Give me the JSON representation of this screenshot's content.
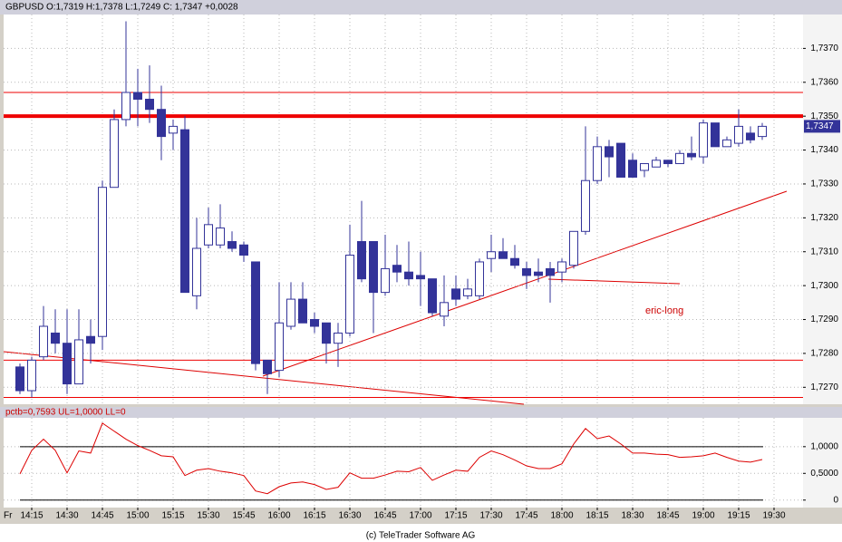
{
  "chart_data": [
    {
      "type": "candlestick",
      "title": "GBPUSD O:1,7319 H:1,7378 L:1,7249 C: 1,7347 +0,0028",
      "x_day_label": "Fr",
      "categories": [
        null,
        "14:15",
        null,
        null,
        "14:30",
        null,
        null,
        "14:45",
        null,
        null,
        "15:00",
        null,
        null,
        "15:15",
        null,
        null,
        "15:30",
        null,
        null,
        "15:45",
        null,
        null,
        "16:00",
        null,
        null,
        "16:15",
        null,
        null,
        "16:30",
        null,
        null,
        "16:45",
        null,
        null,
        "17:00",
        null,
        null,
        "17:15",
        null,
        null,
        "17:30",
        null,
        null,
        "17:45",
        null,
        null,
        "18:00",
        null,
        null,
        "18:15",
        null,
        null,
        "18:30",
        null,
        null,
        "18:45",
        null,
        null,
        "19:00",
        null,
        null,
        "19:15",
        null,
        null,
        "19:30"
      ],
      "open": [
        1.7276,
        1.7269,
        1.7279,
        1.7286,
        1.7283,
        1.7271,
        1.7285,
        1.7285,
        1.7329,
        1.7349,
        1.7357,
        1.7355,
        1.7352,
        1.7345,
        1.7346,
        1.7297,
        1.7312,
        1.7312,
        1.7313,
        1.7312,
        1.7307,
        1.7278,
        1.7275,
        1.7288,
        1.7296,
        1.729,
        1.7289,
        1.7283,
        1.7286,
        1.7313,
        1.7313,
        1.7298,
        1.7306,
        1.7304,
        1.7303,
        1.7302,
        1.7291,
        1.7299,
        1.7297,
        1.7297,
        1.7308,
        1.731,
        1.7308,
        1.7305,
        1.7304,
        1.7305,
        1.7304,
        1.7306,
        1.7316,
        1.7331,
        1.7341,
        1.7342,
        1.7337,
        1.7334,
        1.7335,
        1.7337,
        1.7336,
        1.7339,
        1.7338,
        1.7348,
        1.7341,
        1.7342,
        1.7345,
        1.7344,
        null
      ],
      "high": [
        1.7277,
        1.7279,
        1.7294,
        1.7293,
        1.7293,
        1.7293,
        1.729,
        1.7331,
        1.7352,
        1.7378,
        1.7364,
        1.7365,
        1.7359,
        1.7349,
        1.735,
        1.732,
        1.7323,
        1.7324,
        1.7316,
        1.7313,
        1.7307,
        1.7278,
        1.7301,
        1.7301,
        1.7301,
        1.7292,
        1.7289,
        1.7289,
        1.7318,
        1.7325,
        1.7313,
        1.7315,
        1.7312,
        1.7313,
        1.731,
        1.7302,
        1.7303,
        1.7303,
        1.7302,
        1.7308,
        1.7315,
        1.7314,
        1.7312,
        1.7307,
        1.7308,
        1.7307,
        1.7308,
        1.7316,
        1.7347,
        1.7344,
        1.7343,
        1.7342,
        1.7339,
        1.7336,
        1.7338,
        1.7337,
        1.734,
        1.7344,
        1.7349,
        1.7348,
        1.7344,
        1.7352,
        1.7347,
        1.7348,
        null
      ],
      "low": [
        1.7268,
        1.7267,
        1.7278,
        1.728,
        1.7268,
        1.7271,
        1.7277,
        1.7281,
        1.7329,
        1.7347,
        1.7347,
        1.7348,
        1.7337,
        1.734,
        1.7298,
        1.7293,
        1.7311,
        1.7311,
        1.731,
        1.7307,
        1.7275,
        1.7268,
        1.7273,
        1.7287,
        1.7289,
        1.7286,
        1.7277,
        1.7276,
        1.7285,
        1.7301,
        1.7286,
        1.7297,
        1.7301,
        1.73,
        1.7294,
        1.7291,
        1.7288,
        1.7294,
        1.7296,
        1.7296,
        1.7304,
        1.7308,
        1.7305,
        1.7299,
        1.7301,
        1.7295,
        1.7301,
        1.7305,
        1.7315,
        1.733,
        1.7332,
        1.7332,
        1.7332,
        1.7332,
        1.7335,
        1.7335,
        1.7336,
        1.7337,
        1.7336,
        1.7341,
        1.7341,
        1.7341,
        1.7342,
        1.7343,
        null
      ],
      "close": [
        1.7269,
        1.7278,
        1.7288,
        1.7283,
        1.7271,
        1.7284,
        1.7283,
        1.7329,
        1.7349,
        1.7357,
        1.7355,
        1.7352,
        1.7344,
        1.7347,
        1.7298,
        1.7311,
        1.7318,
        1.7317,
        1.7311,
        1.7309,
        1.7277,
        1.7274,
        1.7289,
        1.7296,
        1.7289,
        1.7288,
        1.7283,
        1.7286,
        1.7309,
        1.7302,
        1.7298,
        1.7305,
        1.7304,
        1.7302,
        1.7302,
        1.7292,
        1.7295,
        1.7296,
        1.7299,
        1.7307,
        1.731,
        1.7308,
        1.7306,
        1.7303,
        1.7303,
        1.7303,
        1.7307,
        1.7316,
        1.7331,
        1.7341,
        1.7338,
        1.7332,
        1.7332,
        1.7336,
        1.7337,
        1.7336,
        1.7339,
        1.7338,
        1.7348,
        1.7341,
        1.7343,
        1.7347,
        1.7343,
        1.7347,
        null
      ],
      "close_label": "1,7347",
      "color": "#333399",
      "ylim": [
        1.7265,
        1.738
      ],
      "yticks": [
        {
          "value": 1.727,
          "label": "1,7270"
        },
        {
          "value": 1.728,
          "label": "1,7280"
        },
        {
          "value": 1.729,
          "label": "1,7290"
        },
        {
          "value": 1.73,
          "label": "1,7300"
        },
        {
          "value": 1.731,
          "label": "1,7310"
        },
        {
          "value": 1.732,
          "label": "1,7320"
        },
        {
          "value": 1.733,
          "label": "1,7330"
        },
        {
          "value": 1.734,
          "label": "1,7340"
        },
        {
          "value": 1.735,
          "label": "1,7350"
        },
        {
          "value": 1.736,
          "label": "1,7360"
        },
        {
          "value": 1.737,
          "label": "1,7370"
        }
      ],
      "levels": [
        1.7357,
        1.735,
        1.7278,
        1.7267
      ],
      "level_color": "#ee0000",
      "annotation": "eric-long",
      "grid": true
    },
    {
      "type": "line",
      "title": "pctb=0,7593 UL=1,0000 LL=0",
      "values": [
        0.49,
        0.93,
        1.14,
        0.93,
        0.51,
        0.92,
        0.88,
        1.44,
        1.29,
        1.14,
        1.02,
        0.93,
        0.83,
        0.81,
        0.46,
        0.56,
        0.59,
        0.54,
        0.51,
        0.46,
        0.17,
        0.12,
        0.25,
        0.32,
        0.34,
        0.29,
        0.2,
        0.24,
        0.51,
        0.41,
        0.41,
        0.47,
        0.54,
        0.53,
        0.61,
        0.37,
        0.47,
        0.56,
        0.54,
        0.8,
        0.92,
        0.85,
        0.75,
        0.64,
        0.59,
        0.59,
        0.68,
        1.05,
        1.34,
        1.15,
        1.2,
        1.05,
        0.88,
        0.88,
        0.86,
        0.85,
        0.8,
        0.81,
        0.83,
        0.88,
        0.8,
        0.73,
        0.71,
        0.7593,
        null
      ],
      "color": "#dd0000",
      "ref_lines": [
        1,
        0
      ],
      "ylim": [
        -0.14,
        1.54
      ],
      "yticks": [
        {
          "value": 1,
          "label": "1,0000"
        },
        {
          "value": 0.5,
          "label": "0,5000"
        },
        0
      ],
      "grid": true
    }
  ],
  "footer": "(c) TeleTrader Software AG"
}
